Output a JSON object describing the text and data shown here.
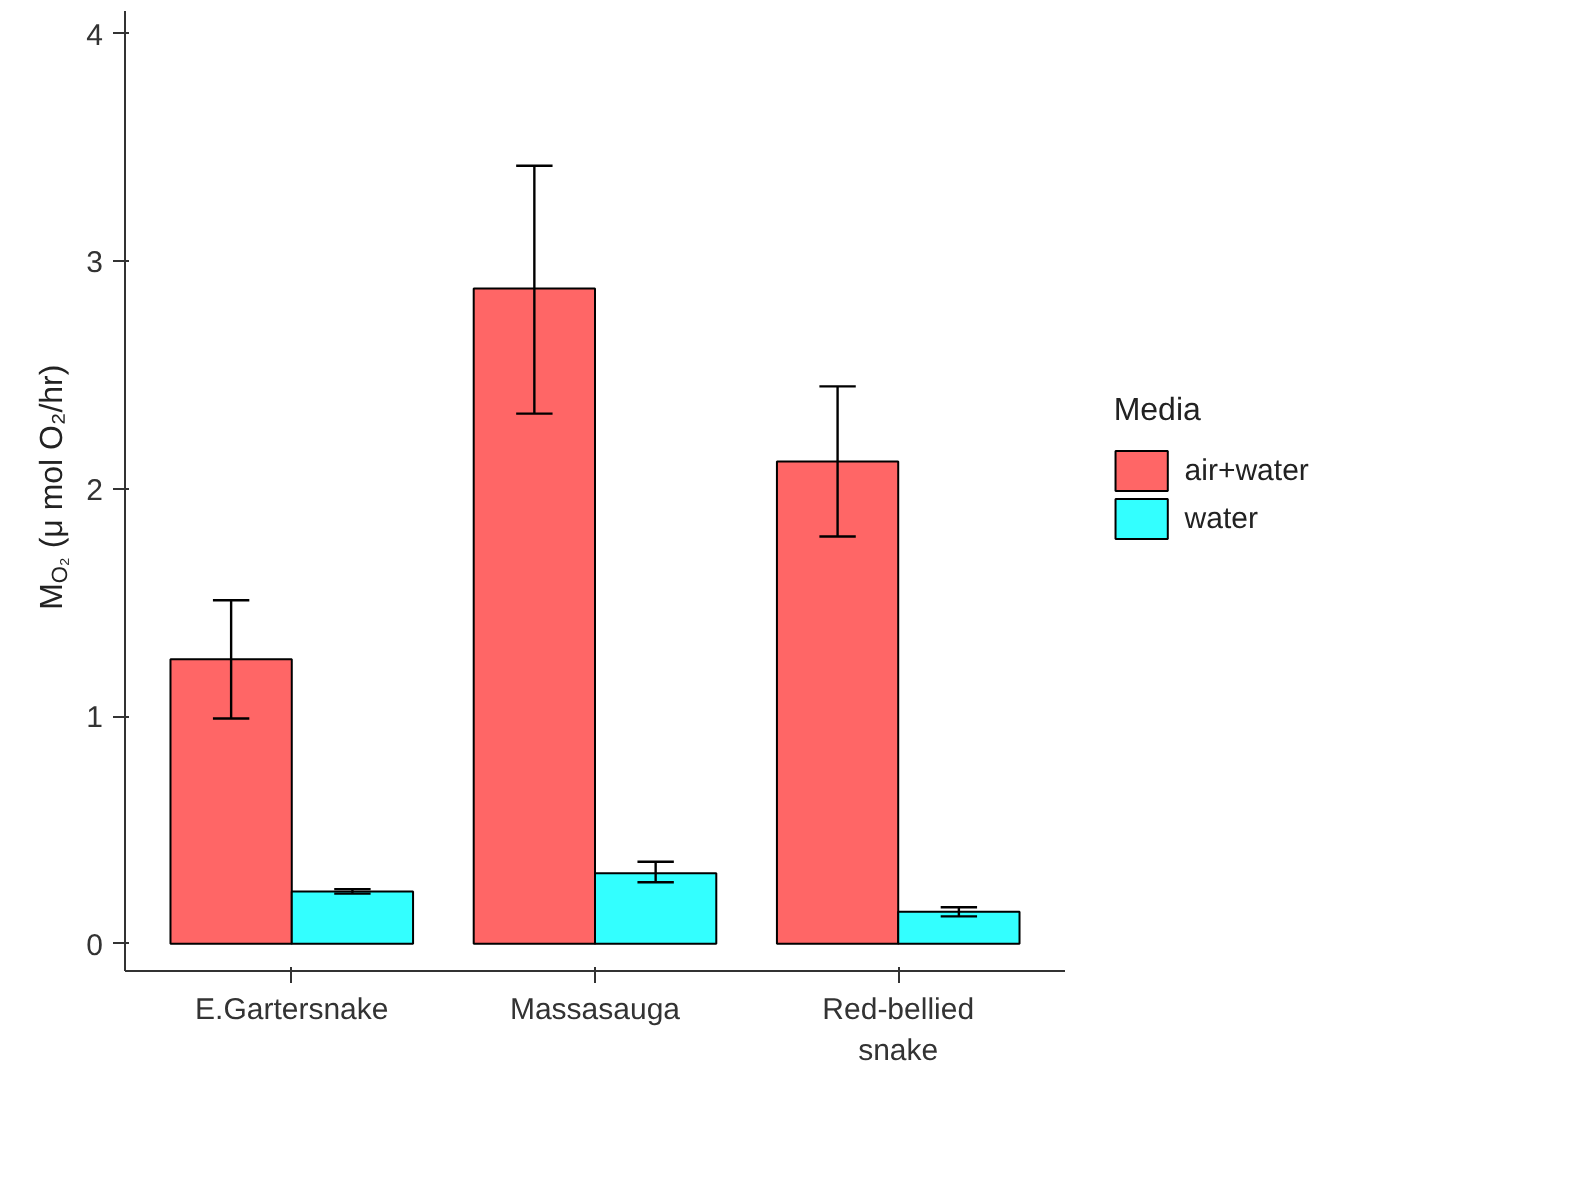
{
  "chart_data": {
    "type": "bar",
    "ylabel": "M$_{O₂}$ (μ mol O₂/hr)",
    "legend_title": "Media",
    "categories": [
      "E.Gartersnake",
      "Massasauga",
      "Red-bellied\nsnake"
    ],
    "series": [
      {
        "name": "air+water",
        "color": "#ff6666",
        "values": [
          1.25,
          2.88,
          2.12
        ],
        "errors": [
          [
            0.99,
            1.51
          ],
          [
            2.33,
            3.42
          ],
          [
            1.79,
            2.45
          ]
        ]
      },
      {
        "name": "water",
        "color": "#33ffff",
        "values": [
          0.23,
          0.31,
          0.14
        ],
        "errors": [
          [
            0.22,
            0.24
          ],
          [
            0.27,
            0.36
          ],
          [
            0.12,
            0.16
          ]
        ]
      }
    ],
    "ylim": [
      -0.12,
      4.1
    ],
    "yticks": [
      0,
      1,
      2,
      3,
      4
    ],
    "grid": false,
    "legend": "right"
  }
}
